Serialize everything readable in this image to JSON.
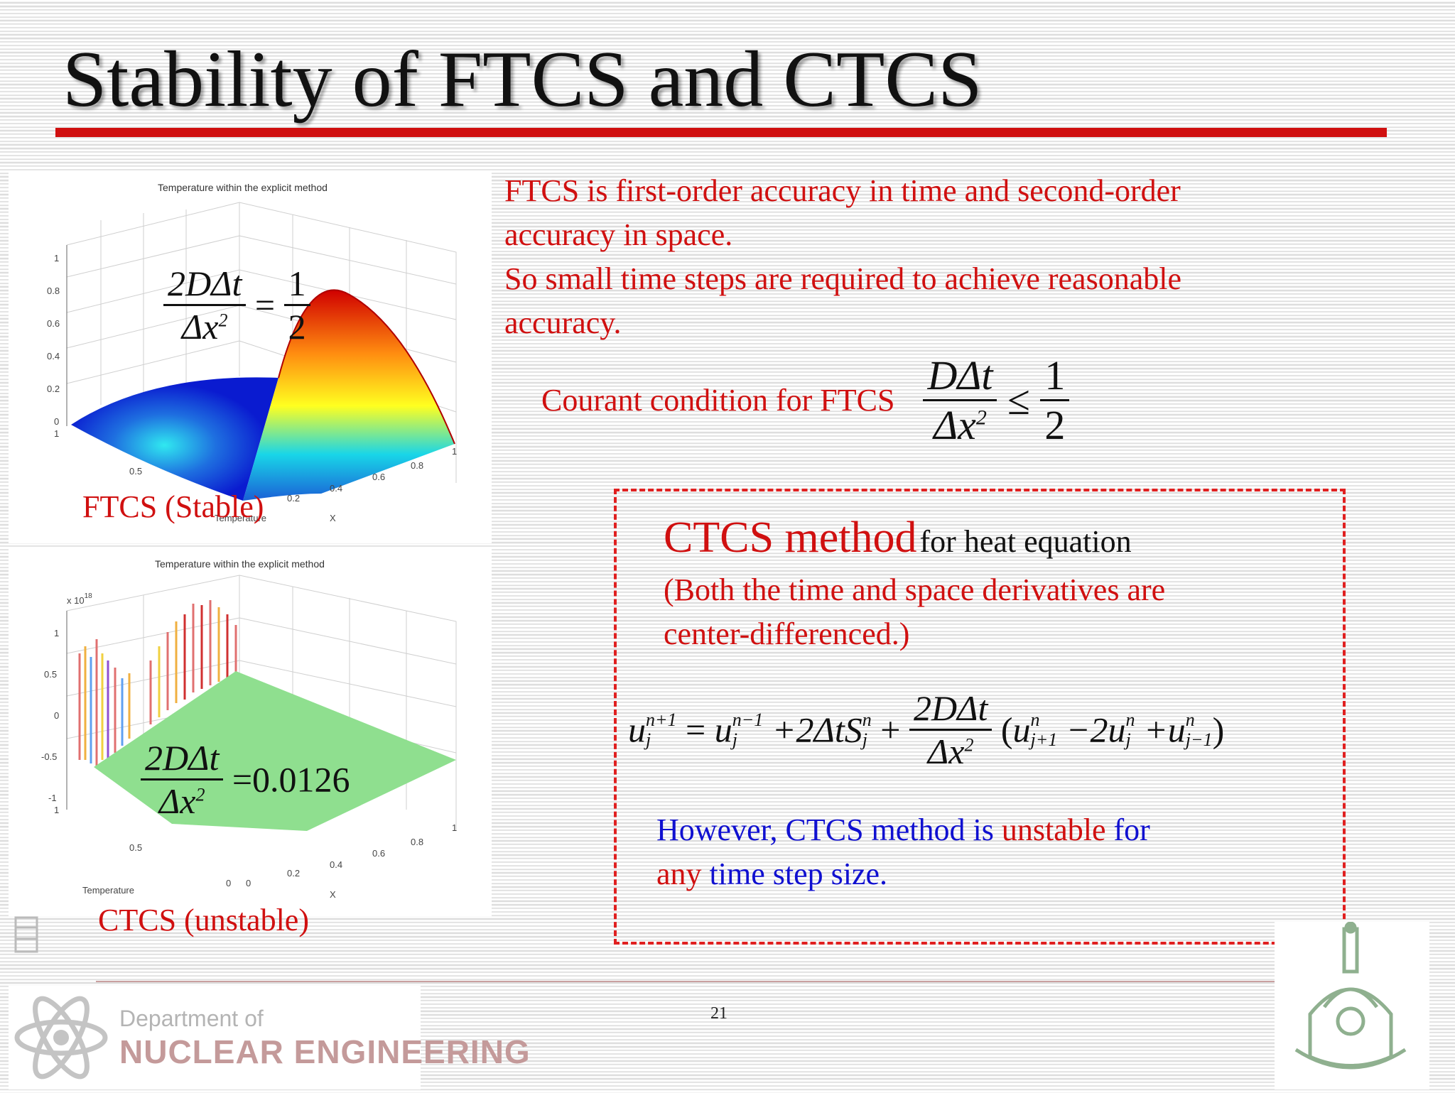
{
  "slide": {
    "title": "Stability of FTCS and CTCS",
    "page_number": "21"
  },
  "plots": {
    "top": {
      "title": "Temperature within the explicit method",
      "caption": "FTCS (Stable)",
      "z_ticks": [
        "1",
        "0.8",
        "0.6",
        "0.4",
        "0.2",
        "0"
      ],
      "x_ticks": [
        "0.8",
        "0.6",
        "0.4",
        "0.2",
        "1"
      ],
      "t_ticks": [
        "1",
        "0.5"
      ],
      "x_label": "X",
      "y_label": "Temperature",
      "eq_num": "2DΔt",
      "eq_den_base": "Δx",
      "eq_den_sup": "2",
      "eq_eq": "=",
      "eq_rhs_num": "1",
      "eq_rhs_den": "2"
    },
    "bottom": {
      "title": "Temperature within the explicit method",
      "caption": "CTCS (unstable)",
      "scale_base": "x 10",
      "scale_exp": "18",
      "z_ticks": [
        "1",
        "0.5",
        "0",
        "-0.5",
        "-1"
      ],
      "x_ticks": [
        "0.8",
        "0.6",
        "0.4",
        "0.2",
        "0",
        "1"
      ],
      "t_ticks": [
        "1",
        "0.5",
        "0"
      ],
      "x_label": "X",
      "y_label": "Temperature",
      "eq_num": "2DΔt",
      "eq_den_base": "Δx",
      "eq_den_sup": "2",
      "eq_rhs": "=0.0126"
    }
  },
  "text": {
    "line1": "FTCS is first-order accuracy in time and second-order",
    "line2": "accuracy in space.",
    "line3": "So small time steps are required to achieve reasonable",
    "line4": "accuracy.",
    "courant_label": "Courant condition for FTCS",
    "courant_num": "DΔt",
    "courant_den_base": "Δx",
    "courant_den_sup": "2",
    "courant_leq": "≤",
    "courant_rhs_num": "1",
    "courant_rhs_den": "2"
  },
  "ctcs_box": {
    "heading": "CTCS method",
    "heading_suffix": "for heat equation",
    "desc_line1": "(Both the time and space derivatives are",
    "desc_line2": "center-differenced.)",
    "formula": {
      "u": "u",
      "j": "j",
      "n_plus_1": "n+1",
      "n_minus_1": "n−1",
      "n": "n",
      "eq": "=",
      "plus_2dt_s": "+2ΔtS",
      "plus": "+",
      "frac_num": "2DΔt",
      "frac_den_base": "Δx",
      "frac_den_sup": "2",
      "open": "(",
      "j_plus_1": "j+1",
      "minus_2u": "−2u",
      "plus_u": "+u",
      "j_minus_1": "j−1",
      "close": ")"
    },
    "note_part1": "However, CTCS method is",
    "note_part2": "unstable",
    "note_part3": "for",
    "note_part4": "any",
    "note_part5": "time step size."
  },
  "footer": {
    "dept_line1": "Department of",
    "dept_line2": "NUCLEAR ENGINEERING"
  },
  "colors": {
    "accent_red": "#d01010",
    "blue": "#1010d0"
  }
}
